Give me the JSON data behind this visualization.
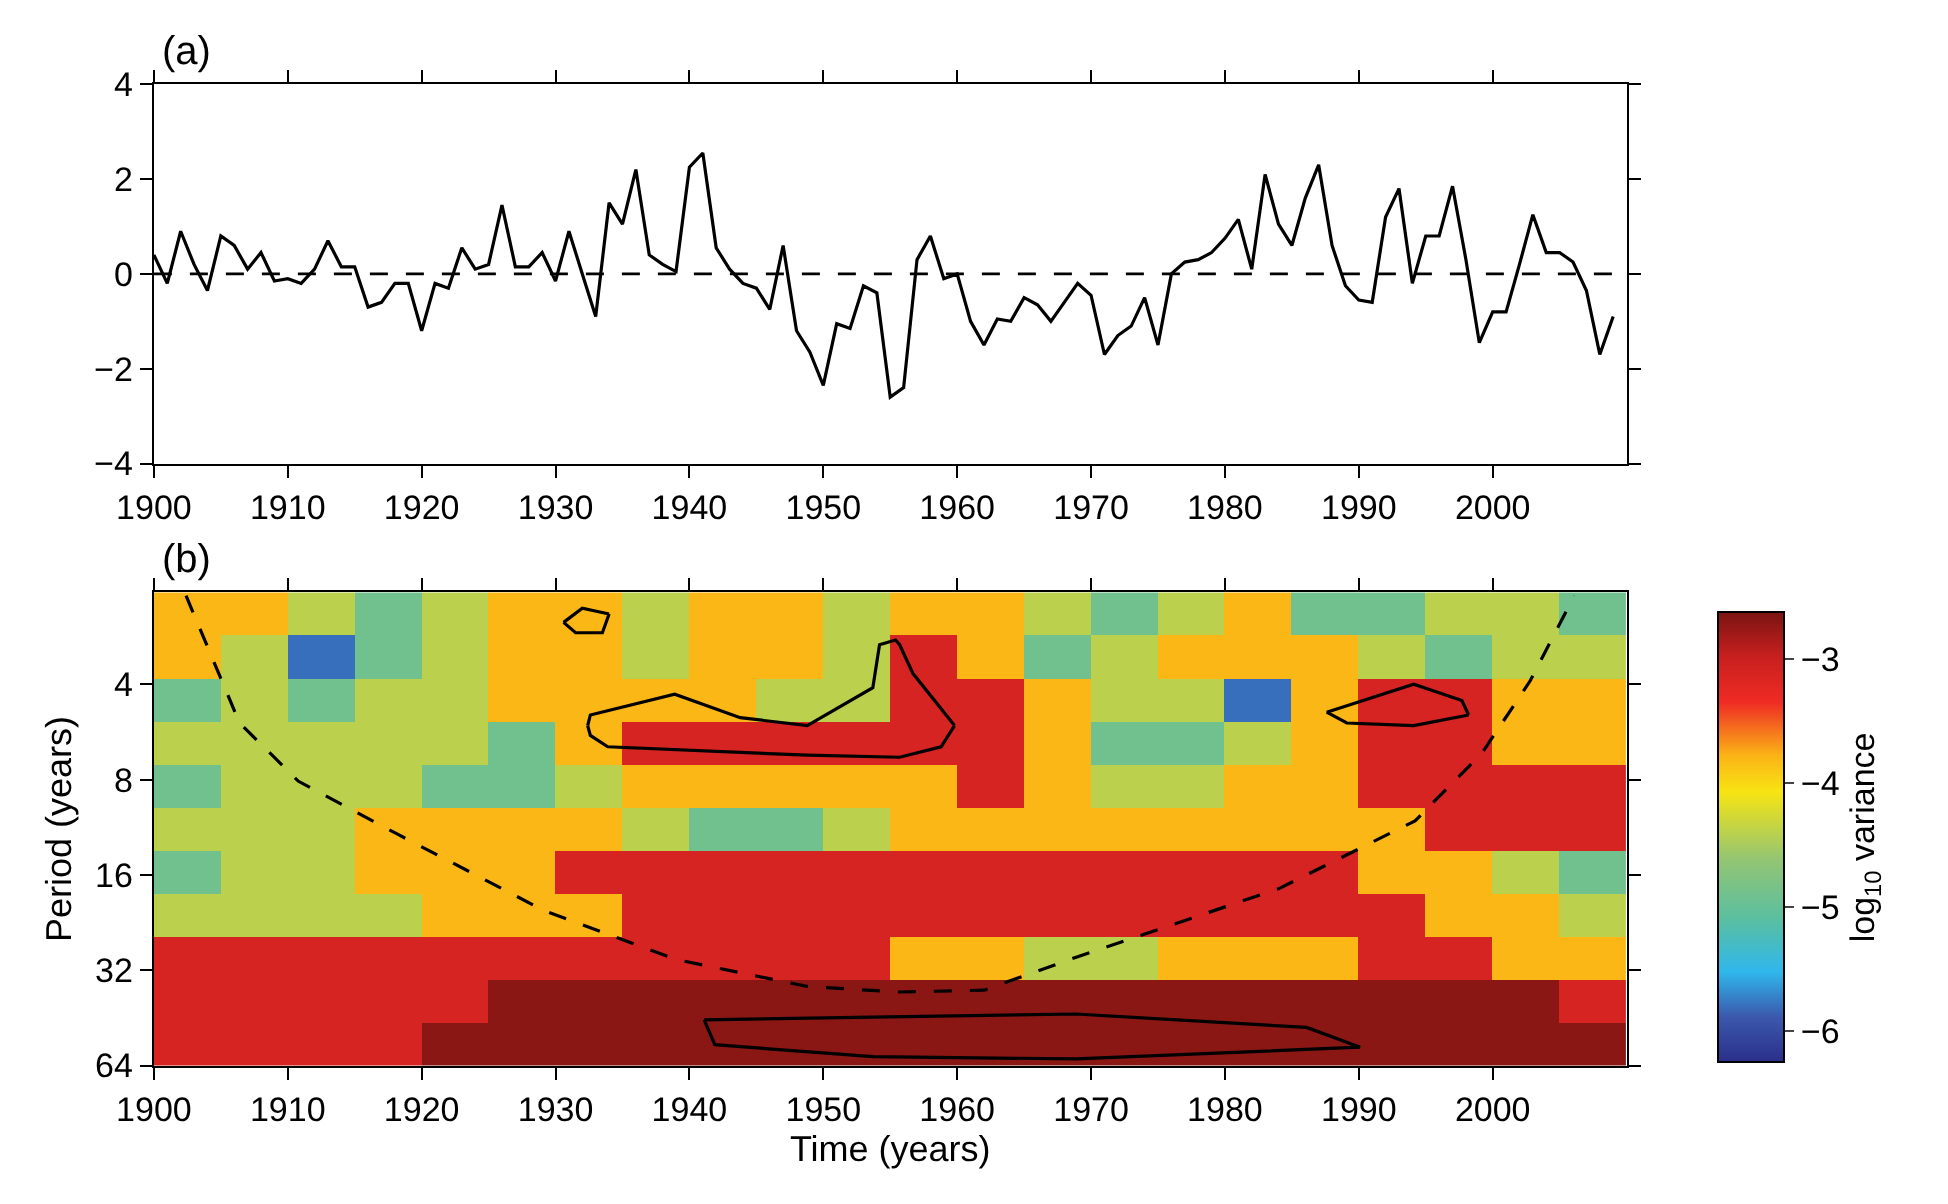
{
  "chart_data": [
    {
      "type": "line",
      "title": "(a)",
      "x": [
        1900,
        1901,
        1902,
        1903,
        1904,
        1905,
        1906,
        1907,
        1908,
        1909,
        1910,
        1911,
        1912,
        1913,
        1914,
        1915,
        1916,
        1917,
        1918,
        1919,
        1920,
        1921,
        1922,
        1923,
        1924,
        1925,
        1926,
        1927,
        1928,
        1929,
        1930,
        1931,
        1932,
        1933,
        1934,
        1935,
        1936,
        1937,
        1938,
        1939,
        1940,
        1941,
        1942,
        1943,
        1944,
        1945,
        1946,
        1947,
        1948,
        1949,
        1950,
        1951,
        1952,
        1953,
        1954,
        1955,
        1956,
        1957,
        1958,
        1959,
        1960,
        1961,
        1962,
        1963,
        1964,
        1965,
        1966,
        1967,
        1968,
        1969,
        1970,
        1971,
        1972,
        1973,
        1974,
        1975,
        1976,
        1977,
        1978,
        1979,
        1980,
        1981,
        1982,
        1983,
        1984,
        1985,
        1986,
        1987,
        1988,
        1989,
        1990,
        1991,
        1992,
        1993,
        1994,
        1995,
        1996,
        1997,
        1998,
        1999,
        2000,
        2001,
        2002,
        2003,
        2004,
        2005,
        2006,
        2007,
        2008,
        2009
      ],
      "series": [
        {
          "type": "line",
          "color": "#000000",
          "values": [
            0.4,
            -0.2,
            0.9,
            0.2,
            -0.35,
            0.8,
            0.6,
            0.1,
            0.45,
            -0.15,
            -0.1,
            -0.2,
            0.1,
            0.7,
            0.15,
            0.15,
            -0.7,
            -0.6,
            -0.2,
            -0.2,
            -1.2,
            -0.2,
            -0.3,
            0.55,
            0.1,
            0.2,
            1.45,
            0.15,
            0.15,
            0.45,
            -0.15,
            0.9,
            0.0,
            -0.9,
            1.5,
            1.05,
            2.2,
            0.4,
            0.2,
            0.05,
            2.25,
            2.55,
            0.55,
            0.1,
            -0.2,
            -0.3,
            -0.75,
            0.6,
            -1.2,
            -1.65,
            -2.35,
            -1.05,
            -1.15,
            -0.25,
            -0.4,
            -2.6,
            -2.4,
            0.3,
            0.8,
            -0.1,
            0.0,
            -1.0,
            -1.5,
            -0.95,
            -1.0,
            -0.5,
            -0.65,
            -1.0,
            -0.6,
            -0.2,
            -0.45,
            -1.7,
            -1.3,
            -1.1,
            -0.5,
            -1.5,
            0.0,
            0.25,
            0.3,
            0.45,
            0.75,
            1.15,
            0.1,
            2.1,
            1.05,
            0.6,
            1.6,
            2.3,
            0.6,
            -0.25,
            -0.55,
            -0.6,
            1.2,
            1.8,
            -0.2,
            0.8,
            0.8,
            1.85,
            0.3,
            -1.45,
            -0.8,
            -0.8,
            0.2,
            1.25,
            0.45,
            0.45,
            0.25,
            -0.35,
            -1.7,
            -0.9
          ]
        }
      ],
      "xlim": [
        1900,
        2010
      ],
      "xticks": [
        1900,
        1910,
        1920,
        1930,
        1940,
        1950,
        1960,
        1970,
        1980,
        1990,
        2000
      ],
      "ylim": [
        -4,
        4
      ],
      "yticks": [
        {
          "value": -4,
          "label": "−4"
        },
        {
          "value": -2,
          "label": "−2"
        },
        0,
        2,
        4
      ],
      "ref_lines": [
        {
          "axis": "y",
          "value": 0,
          "color": "#000000",
          "line_style": "dashed"
        }
      ],
      "marker": "none",
      "line_style": "solid",
      "grid": false
    },
    {
      "type": "heatmap",
      "title": "(b)",
      "clabel": "log$_{10}$ variance",
      "categories": [
        null,
        null,
        null,
        null,
        null,
        null,
        null,
        null,
        null,
        null,
        null,
        null,
        null,
        null,
        null,
        null,
        null,
        null,
        null,
        null,
        null,
        null
      ],
      "y_categories": [
        null,
        null,
        null,
        null,
        null,
        null,
        null,
        null,
        null,
        null,
        null
      ],
      "cells": [
        [
          -3.8,
          -3.8,
          -4.4,
          -4.9,
          -4.4,
          -3.8,
          -3.8,
          -4.4,
          -3.8,
          -3.8,
          -4.4,
          -3.8,
          -3.8,
          -4.4,
          -4.9,
          -4.4,
          -3.8,
          -4.9,
          -4.9,
          -4.4,
          -4.4,
          -4.9
        ],
        [
          -3.8,
          -4.4,
          -5.8,
          -4.9,
          -4.4,
          -3.8,
          -3.8,
          -4.4,
          -3.8,
          -3.8,
          -4.4,
          -3.1,
          -3.8,
          -4.9,
          -4.4,
          -3.8,
          -3.8,
          -3.8,
          -4.4,
          -4.9,
          -4.4,
          -4.4
        ],
        [
          -4.9,
          -4.4,
          -4.9,
          -4.4,
          -4.4,
          -3.8,
          -3.8,
          -3.8,
          -3.8,
          -4.4,
          -4.4,
          -3.1,
          -3.1,
          -3.8,
          -4.4,
          -4.4,
          -5.8,
          -3.8,
          -3.1,
          -3.1,
          -3.8,
          -3.8
        ],
        [
          -4.4,
          -4.4,
          -4.4,
          -4.4,
          -4.4,
          -4.9,
          -3.8,
          -3.1,
          -3.1,
          -3.1,
          -3.1,
          -3.1,
          -3.1,
          -3.8,
          -4.9,
          -4.9,
          -4.4,
          -3.8,
          -3.1,
          -3.1,
          -3.8,
          -3.8
        ],
        [
          -4.9,
          -4.4,
          -4.4,
          -4.4,
          -4.9,
          -4.9,
          -4.4,
          -3.8,
          -3.8,
          -3.8,
          -3.8,
          -3.8,
          -3.1,
          -3.8,
          -4.4,
          -4.4,
          -3.8,
          -3.8,
          -3.1,
          -3.1,
          -3.1,
          -3.1
        ],
        [
          -4.4,
          -4.4,
          -4.4,
          -3.8,
          -3.8,
          -3.8,
          -3.8,
          -4.4,
          -4.9,
          -4.9,
          -4.4,
          -3.8,
          -3.8,
          -3.8,
          -3.8,
          -3.8,
          -3.8,
          -3.8,
          -3.8,
          -3.1,
          -3.1,
          -3.1
        ],
        [
          -4.9,
          -4.4,
          -4.4,
          -3.8,
          -3.8,
          -3.8,
          -3.1,
          -3.1,
          -3.1,
          -3.1,
          -3.1,
          -3.1,
          -3.1,
          -3.1,
          -3.1,
          -3.1,
          -3.1,
          -3.1,
          -3.8,
          -3.8,
          -4.4,
          -4.9
        ],
        [
          -4.4,
          -4.4,
          -4.4,
          -4.4,
          -3.8,
          -3.8,
          -3.8,
          -3.1,
          -3.1,
          -3.1,
          -3.1,
          -3.1,
          -3.1,
          -3.1,
          -3.1,
          -3.1,
          -3.1,
          -3.1,
          -3.1,
          -3.8,
          -3.8,
          -4.4
        ],
        [
          -3.1,
          -3.1,
          -3.1,
          -3.1,
          -3.1,
          -3.1,
          -3.1,
          -3.1,
          -3.1,
          -3.1,
          -3.1,
          -3.8,
          -3.8,
          -4.4,
          -4.4,
          -3.8,
          -3.8,
          -3.8,
          -3.1,
          -3.1,
          -3.8,
          -3.8
        ],
        [
          -3.1,
          -3.1,
          -3.1,
          -3.1,
          -3.1,
          -2.7,
          -2.7,
          -2.7,
          -2.7,
          -2.7,
          -2.7,
          -2.7,
          -2.7,
          -2.7,
          -2.7,
          -2.7,
          -2.7,
          -2.7,
          -2.7,
          -2.7,
          -2.7,
          -3.1
        ],
        [
          -3.1,
          -3.1,
          -3.1,
          -3.1,
          -2.7,
          -2.7,
          -2.7,
          -2.7,
          -2.7,
          -2.7,
          -2.7,
          -2.7,
          -2.7,
          -2.7,
          -2.7,
          -2.7,
          -2.7,
          -2.7,
          -2.7,
          -2.7,
          -2.7,
          -2.7
        ]
      ],
      "clim": [
        -6.25,
        -2.62
      ],
      "cticks": [
        {
          "value": -3,
          "label": "−3"
        },
        {
          "value": -4,
          "label": "−4"
        },
        {
          "value": -5,
          "label": "−5"
        },
        {
          "value": -6,
          "label": "−6"
        }
      ]
    },
    {
      "type": "line",
      "xlabel": "Time (years)",
      "ylabel": "Period (years)",
      "series": [
        {
          "type": "line",
          "color": "#000000",
          "line_style": "dashed",
          "x": [
            1902.4,
            1906.4,
            1910.8,
            1918.2,
            1929.1,
            1939,
            1948.8,
            1955.5,
            1962,
            1969,
            1984,
            1994.2,
            1999.2,
            2002.8,
            2006.1
          ],
          "values": [
            2.1,
            5.3,
            8.1,
            11.9,
            20.7,
            29.6,
            36,
            37.5,
            37,
            29,
            17.7,
            10.8,
            6.6,
            3.9,
            2.1
          ]
        },
        {
          "type": "line",
          "color": "#000000",
          "line_style": "solid",
          "x": [
            1930.6,
            1932,
            1934
          ],
          "values": [
            2.55,
            2.3,
            2.4
          ]
        },
        {
          "type": "line",
          "color": "#000000",
          "line_style": "solid",
          "x": [
            1930.6,
            1931.5,
            1933.5,
            1934
          ],
          "values": [
            2.55,
            2.75,
            2.75,
            2.4
          ]
        },
        {
          "type": "line",
          "color": "#000000",
          "line_style": "solid",
          "x": [
            1932.4,
            1932.6,
            1938.9,
            1943.8,
            1948.8,
            1953.7,
            1954.2,
            1955.4,
            1955.7,
            1956.7,
            1959.8
          ],
          "values": [
            5.4,
            5.0,
            4.3,
            5.1,
            5.4,
            4.1,
            3.0,
            2.9,
            3.0,
            3.7,
            5.4
          ]
        },
        {
          "type": "line",
          "color": "#000000",
          "line_style": "solid",
          "x": [
            1932.4,
            1932.6,
            1933.9,
            1948.8,
            1955.7,
            1958.8,
            1959.8
          ],
          "values": [
            5.4,
            5.8,
            6.3,
            6.7,
            6.8,
            6.3,
            5.4
          ]
        },
        {
          "type": "line",
          "color": "#000000",
          "line_style": "solid",
          "x": [
            1987.6,
            1994.1,
            1997.7,
            1998.2
          ],
          "values": [
            4.9,
            4.0,
            4.5,
            5.0
          ]
        },
        {
          "type": "line",
          "color": "#000000",
          "line_style": "solid",
          "x": [
            1987.6,
            1989.1,
            1994.1,
            1998.2
          ],
          "values": [
            4.9,
            5.3,
            5.4,
            5.0
          ]
        },
        {
          "type": "line",
          "color": "#000000",
          "line_style": "solid",
          "x": [
            1941.1,
            1953.7,
            1968.9,
            1986.1,
            1990.1
          ],
          "values": [
            45.9,
            45,
            44,
            48.5,
            56
          ]
        },
        {
          "type": "line",
          "color": "#000000",
          "line_style": "solid",
          "x": [
            1941.1,
            1941.9,
            1953.7,
            1968.9,
            1990.1
          ],
          "values": [
            45.9,
            55,
            60,
            61,
            56
          ]
        }
      ],
      "xlim": [
        1900,
        2010
      ],
      "xticks": [
        1900,
        1910,
        1920,
        1930,
        1940,
        1950,
        1960,
        1970,
        1980,
        1990,
        2000
      ],
      "ylim": [
        64,
        2.05
      ],
      "yticks": [
        4,
        8,
        16,
        32,
        64
      ],
      "log": "y",
      "marker": "none",
      "grid": false
    }
  ]
}
